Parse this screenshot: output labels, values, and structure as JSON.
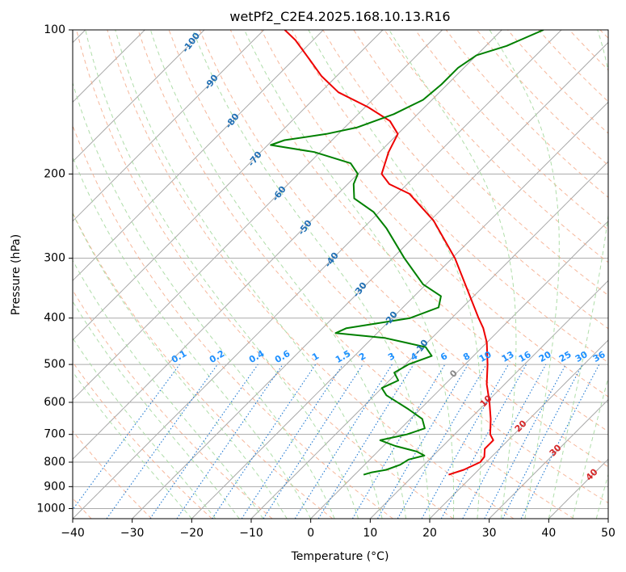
{
  "chart_data": {
    "type": "line",
    "title": "wetPf2_C2E4.2025.168.10.13.R16",
    "xlabel": "Temperature (°C)",
    "ylabel": "Pressure (hPa)",
    "xlim": [
      -40,
      50
    ],
    "ylim": [
      1050,
      100
    ],
    "y_scale": "log",
    "grid": true,
    "x_ticks": [
      -40,
      -30,
      -20,
      -10,
      0,
      10,
      20,
      30,
      40,
      50
    ],
    "y_ticks": [
      100,
      200,
      300,
      400,
      500,
      600,
      700,
      800,
      900,
      1000
    ],
    "series": [
      {
        "color": "#ee0000",
        "points": [
          {
            "p": 850,
            "t": 15.8
          },
          {
            "p": 830,
            "t": 17.5
          },
          {
            "p": 800,
            "t": 19.0
          },
          {
            "p": 780,
            "t": 18.8
          },
          {
            "p": 750,
            "t": 17.5
          },
          {
            "p": 720,
            "t": 17.5
          },
          {
            "p": 700,
            "t": 16.0
          },
          {
            "p": 650,
            "t": 13.5
          },
          {
            "p": 600,
            "t": 10.5
          },
          {
            "p": 550,
            "t": 7.0
          },
          {
            "p": 500,
            "t": 3.8
          },
          {
            "p": 450,
            "t": 0.0
          },
          {
            "p": 420,
            "t": -3.0
          },
          {
            "p": 400,
            "t": -5.5
          },
          {
            "p": 350,
            "t": -12.0
          },
          {
            "p": 300,
            "t": -19.5
          },
          {
            "p": 250,
            "t": -29.5
          },
          {
            "p": 220,
            "t": -38.0
          },
          {
            "p": 210,
            "t": -43.0
          },
          {
            "p": 200,
            "t": -46.0
          },
          {
            "p": 180,
            "t": -48.5
          },
          {
            "p": 165,
            "t": -50.0
          },
          {
            "p": 155,
            "t": -53.5
          },
          {
            "p": 145,
            "t": -59.5
          },
          {
            "p": 135,
            "t": -67.0
          },
          {
            "p": 125,
            "t": -72.5
          },
          {
            "p": 115,
            "t": -77.5
          },
          {
            "p": 105,
            "t": -83.0
          },
          {
            "p": 100,
            "t": -86.5
          }
        ]
      },
      {
        "color": "#008000",
        "points": [
          {
            "p": 850,
            "t": 1.5
          },
          {
            "p": 840,
            "t": 2.5
          },
          {
            "p": 830,
            "t": 4.5
          },
          {
            "p": 810,
            "t": 6.0
          },
          {
            "p": 790,
            "t": 6.5
          },
          {
            "p": 775,
            "t": 8.5
          },
          {
            "p": 760,
            "t": 6.5
          },
          {
            "p": 740,
            "t": 2.0
          },
          {
            "p": 720,
            "t": -1.5
          },
          {
            "p": 700,
            "t": 2.0
          },
          {
            "p": 680,
            "t": 4.0
          },
          {
            "p": 650,
            "t": 2.0
          },
          {
            "p": 620,
            "t": -2.0
          },
          {
            "p": 580,
            "t": -8.0
          },
          {
            "p": 560,
            "t": -10.0
          },
          {
            "p": 540,
            "t": -8.5
          },
          {
            "p": 520,
            "t": -10.5
          },
          {
            "p": 500,
            "t": -9.5
          },
          {
            "p": 480,
            "t": -7.0
          },
          {
            "p": 460,
            "t": -9.5
          },
          {
            "p": 440,
            "t": -18.0
          },
          {
            "p": 430,
            "t": -27.0
          },
          {
            "p": 420,
            "t": -26.0
          },
          {
            "p": 400,
            "t": -17.0
          },
          {
            "p": 380,
            "t": -14.0
          },
          {
            "p": 360,
            "t": -15.5
          },
          {
            "p": 340,
            "t": -20.5
          },
          {
            "p": 300,
            "t": -28.0
          },
          {
            "p": 260,
            "t": -36.0
          },
          {
            "p": 240,
            "t": -41.0
          },
          {
            "p": 225,
            "t": -46.5
          },
          {
            "p": 210,
            "t": -49.0
          },
          {
            "p": 200,
            "t": -50.0
          },
          {
            "p": 190,
            "t": -53.0
          },
          {
            "p": 180,
            "t": -61.0
          },
          {
            "p": 174,
            "t": -69.5
          },
          {
            "p": 170,
            "t": -68.0
          },
          {
            "p": 165,
            "t": -62.0
          },
          {
            "p": 160,
            "t": -58.0
          },
          {
            "p": 150,
            "t": -54.0
          },
          {
            "p": 140,
            "t": -51.5
          },
          {
            "p": 130,
            "t": -51.0
          },
          {
            "p": 120,
            "t": -51.0
          },
          {
            "p": 113,
            "t": -50.0
          },
          {
            "p": 108,
            "t": -46.5
          },
          {
            "p": 100,
            "t": -43.0
          }
        ]
      }
    ],
    "dry_adiabat_labels": [
      "-100",
      "-90",
      "-80",
      "-70",
      "-60",
      "-50",
      "-40",
      "-30",
      "-20",
      "-10"
    ],
    "mixing_ratio_labels": [
      "0.1",
      "0.2",
      "0.4",
      "0.6",
      "1",
      "1.5",
      "2",
      "3",
      "4",
      "6",
      "8",
      "10",
      "13",
      "16",
      "20",
      "25",
      "30",
      "36"
    ],
    "moist_adiabat_labels": [
      "0",
      "10",
      "20",
      "30",
      "40"
    ],
    "colors": {
      "temperature": "#ee0000",
      "dewpoint": "#008000",
      "isotherm": "#999999",
      "dry_adiabat": "#f4a582",
      "moist_adiabat": "#a6d9a0",
      "mixing_ratio": "#1f78d1",
      "dry_label": "#1f6fb4",
      "moist_label": "#d62728",
      "mix_label": "#1e90ff"
    }
  }
}
